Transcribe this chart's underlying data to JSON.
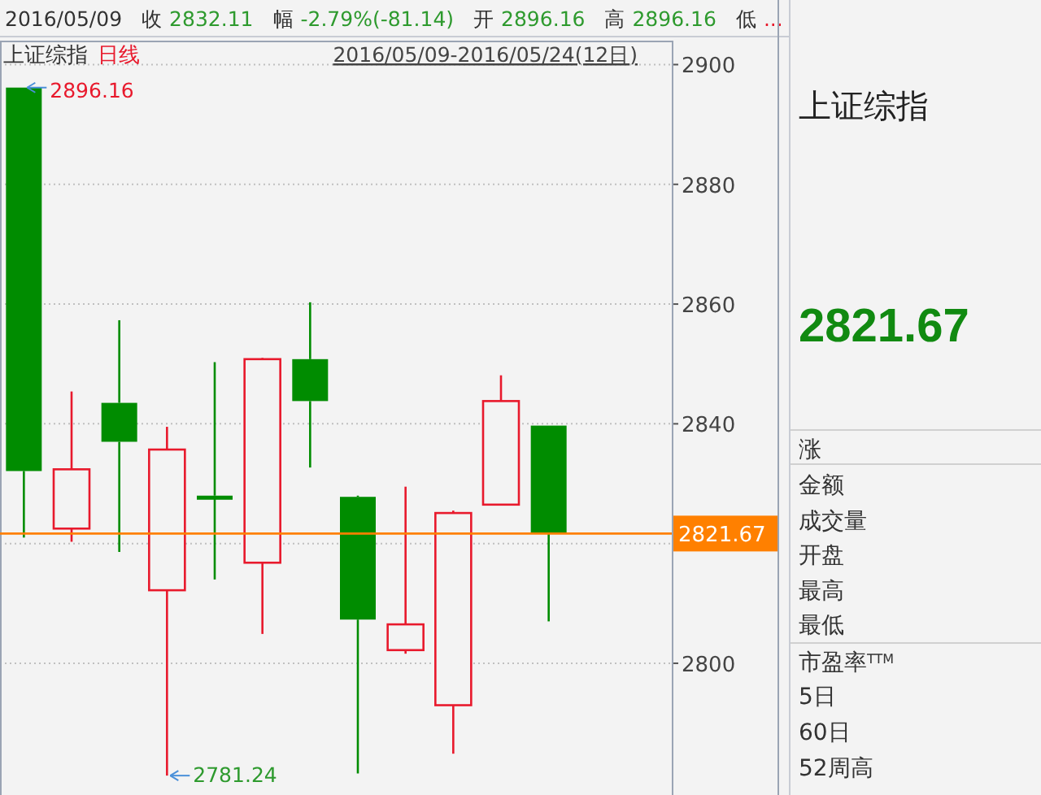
{
  "chart_data": {
    "type": "candlestick",
    "title": "上证综指",
    "subtitle": "日线",
    "categories": [
      null,
      null,
      null,
      null,
      null,
      null,
      null,
      null,
      null,
      null,
      null,
      null
    ],
    "ohlc": [
      [
        2896.16,
        2896.16,
        2821.0,
        2832.11
      ],
      [
        2822.5,
        2845.4,
        2820.3,
        2832.4
      ],
      [
        2843.5,
        2857.3,
        2818.6,
        2837.0
      ],
      [
        2812.2,
        2839.5,
        2781.24,
        2835.7
      ],
      [
        2828.0,
        2850.3,
        2814.0,
        2827.6
      ],
      [
        2816.8,
        2851.0,
        2804.9,
        2850.8
      ],
      [
        2850.8,
        2860.3,
        2832.7,
        2843.8
      ],
      [
        2827.8,
        2828.0,
        2781.6,
        2807.3
      ],
      [
        2802.2,
        2829.5,
        2801.6,
        2806.5
      ],
      [
        2793.0,
        2825.5,
        2784.9,
        2825.1
      ],
      [
        2826.5,
        2848.1,
        2826.5,
        2843.8
      ],
      [
        2839.7,
        2839.7,
        2807.0,
        2821.67
      ]
    ],
    "colors": [
      "#008c00",
      "#e8192c",
      "#008c00",
      "#e8192c",
      "#008c00",
      "#e8192c",
      "#008c00",
      "#008c00",
      "#e8192c",
      "#e8192c",
      "#e8192c",
      "#008c00"
    ],
    "ylim": [
      2778,
      2904
    ],
    "yticks": [
      2800,
      {
        "value": 2820,
        "label": null
      },
      2840,
      2860,
      2880,
      2900
    ],
    "grid": "y",
    "ref_lines": [
      {
        "axis": "y",
        "value": 2821.67,
        "label": "2821.67",
        "color": "#ff8000"
      }
    ],
    "annotations": [
      "2016/05/09",
      "收",
      "2832.11",
      "幅",
      "-2.79%(-81.14)",
      "开",
      "2896.16",
      "高",
      "2896.16",
      "低",
      "...",
      "2016/05/09-2016/05/24(12日)",
      "2896.16",
      "2781.24",
      "上证综指",
      "2821.67",
      "涨",
      "金额",
      "成交量",
      "开盘",
      "最高",
      "最低",
      "市盈率$^{TTM}$",
      "5日",
      "60日",
      "52周高"
    ]
  }
}
